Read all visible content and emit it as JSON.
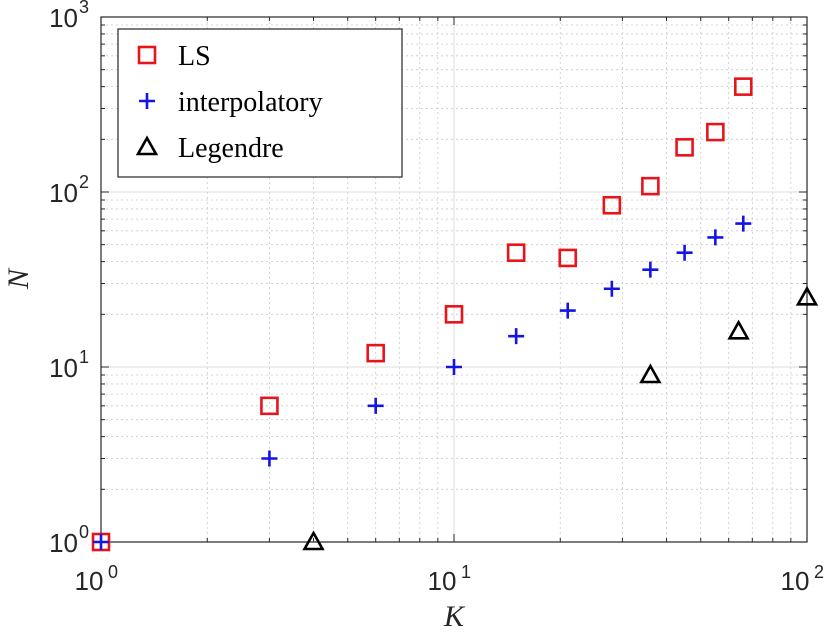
{
  "chart_data": {
    "type": "scatter",
    "xscale": "log",
    "yscale": "log",
    "xlabel": "K",
    "ylabel": "N",
    "xlim": [
      1,
      100
    ],
    "ylim": [
      1,
      1000
    ],
    "grid": true,
    "legend_position": "top-left",
    "x_ticks": [
      {
        "base": "10",
        "exp": "0",
        "value": 1
      },
      {
        "base": "10",
        "exp": "1",
        "value": 10
      },
      {
        "base": "10",
        "exp": "2",
        "value": 100
      }
    ],
    "y_ticks": [
      {
        "base": "10",
        "exp": "0",
        "value": 1
      },
      {
        "base": "10",
        "exp": "1",
        "value": 10
      },
      {
        "base": "10",
        "exp": "2",
        "value": 100
      },
      {
        "base": "10",
        "exp": "3",
        "value": 1000
      }
    ],
    "series": [
      {
        "name": "LS",
        "marker": "square",
        "color": "#e8141c",
        "points": [
          [
            1,
            1
          ],
          [
            3,
            6
          ],
          [
            6,
            12
          ],
          [
            10,
            20
          ],
          [
            15,
            45
          ],
          [
            21,
            42
          ],
          [
            28,
            84
          ],
          [
            36,
            108
          ],
          [
            45,
            180
          ],
          [
            55,
            220
          ],
          [
            66,
            400
          ]
        ]
      },
      {
        "name": "interpolatory",
        "marker": "plus",
        "color": "#1414e6",
        "points": [
          [
            1,
            1
          ],
          [
            3,
            3
          ],
          [
            6,
            6
          ],
          [
            10,
            10
          ],
          [
            15,
            15
          ],
          [
            21,
            21
          ],
          [
            28,
            28
          ],
          [
            36,
            36
          ],
          [
            45,
            45
          ],
          [
            55,
            55
          ],
          [
            66,
            66
          ]
        ]
      },
      {
        "name": "Legendre",
        "marker": "triangle",
        "color": "#000000",
        "points": [
          [
            4,
            1
          ],
          [
            36,
            9
          ],
          [
            64,
            16
          ],
          [
            100,
            25
          ]
        ]
      }
    ]
  }
}
